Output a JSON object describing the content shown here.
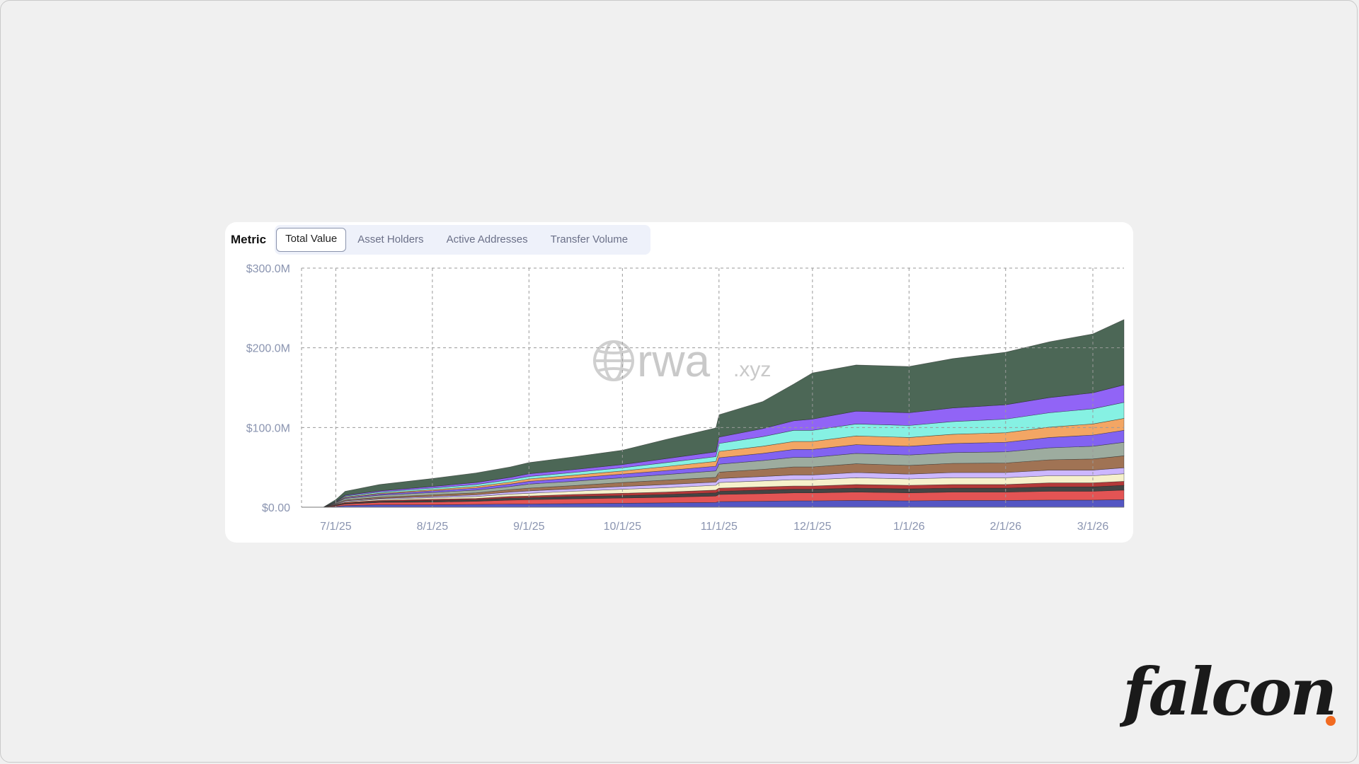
{
  "metric": {
    "label": "Metric",
    "tabs": [
      "Total Value",
      "Asset Holders",
      "Active Addresses",
      "Transfer Volume"
    ],
    "active_tab": "Total Value"
  },
  "watermark": {
    "main": "rwa",
    "suffix": ".xyz"
  },
  "logo": {
    "text": "falcon",
    "dot_color": "#f26b21"
  },
  "chart_data": {
    "type": "area",
    "stacked": true,
    "ylim": [
      0,
      300000000
    ],
    "y_ticks": [
      {
        "value": 0,
        "label": "$0.00"
      },
      {
        "value": 100000000,
        "label": "$100.0M"
      },
      {
        "value": 200000000,
        "label": "$200.0M"
      },
      {
        "value": 300000000,
        "label": "$300.0M"
      }
    ],
    "x_ticks": [
      "7/1/25",
      "8/1/25",
      "9/1/25",
      "10/1/25",
      "11/1/25",
      "12/1/25",
      "1/1/26",
      "2/1/26",
      "3/1/26"
    ],
    "x": [
      "2025-06-20",
      "2025-06-27",
      "2025-07-01",
      "2025-07-04",
      "2025-07-15",
      "2025-08-01",
      "2025-08-15",
      "2025-08-26",
      "2025-09-01",
      "2025-09-15",
      "2025-10-01",
      "2025-10-15",
      "2025-10-31",
      "2025-11-01",
      "2025-11-15",
      "2025-11-25",
      "2025-12-01",
      "2025-12-15",
      "2026-01-01",
      "2026-01-15",
      "2026-02-01",
      "2026-02-15",
      "2026-03-01",
      "2026-03-11"
    ],
    "grid": true,
    "legend": "none",
    "series": [
      {
        "color": "#4b4dc0",
        "values": [
          0,
          0,
          1,
          2,
          3,
          3,
          3.5,
          4,
          4,
          4.5,
          5,
          5.5,
          6,
          7,
          7.5,
          8,
          8,
          8.5,
          8,
          8.5,
          8.5,
          9,
          9,
          9.5
        ]
      },
      {
        "color": "#e14b4b",
        "values": [
          0,
          0,
          1,
          2,
          3,
          3.5,
          4,
          5,
          5.5,
          6,
          6.5,
          7,
          8,
          9,
          9.5,
          10,
          10,
          10.5,
          10,
          10.5,
          10.5,
          11,
          11,
          12
        ]
      },
      {
        "color": "#3a3a3a",
        "values": [
          0,
          0,
          0.5,
          1,
          1.5,
          2,
          2,
          2.5,
          2.5,
          3,
          3,
          3.5,
          4,
          4,
          4.5,
          4.5,
          4.5,
          5,
          5,
          5,
          5,
          5.5,
          5.5,
          6
        ]
      },
      {
        "color": "#b02e2e",
        "values": [
          0,
          0,
          0.5,
          1,
          1,
          1.5,
          1.5,
          2,
          2,
          2.5,
          3,
          3,
          3.5,
          4,
          4,
          4,
          4,
          4.5,
          4.5,
          4.5,
          4.5,
          5,
          5,
          5
        ]
      },
      {
        "color": "#f5f0c8",
        "values": [
          0,
          0,
          0.5,
          1,
          1.5,
          2,
          2.5,
          3,
          3.5,
          4,
          5,
          5.5,
          6,
          7,
          7.5,
          8,
          8,
          8.5,
          8,
          8.5,
          8.5,
          9,
          9,
          9.5
        ]
      },
      {
        "color": "#c9b3ff",
        "values": [
          0,
          0,
          0.5,
          1,
          1,
          1.5,
          2,
          2.5,
          3,
          3,
          3.5,
          4,
          4,
          5,
          5.5,
          6,
          6,
          6.5,
          6,
          6.5,
          6.5,
          7,
          7,
          7.5
        ]
      },
      {
        "color": "#9b6b4b",
        "values": [
          0,
          0,
          0.5,
          1,
          1.5,
          2,
          2.5,
          3,
          3.5,
          4,
          5,
          5.5,
          6,
          8,
          9,
          10,
          10,
          11,
          11,
          11.5,
          12,
          13,
          14,
          15
        ]
      },
      {
        "color": "#98a89a",
        "values": [
          0,
          0,
          1,
          2,
          2.5,
          3,
          3.5,
          4,
          5,
          5.5,
          6,
          7,
          8,
          10,
          11,
          12,
          12,
          13,
          13,
          13.5,
          14,
          15,
          16,
          17
        ]
      },
      {
        "color": "#7b5bf0",
        "values": [
          0,
          0,
          0.5,
          1,
          1.5,
          2,
          2.5,
          3,
          3.5,
          4,
          4.5,
          5,
          6,
          8,
          9,
          10,
          10,
          11,
          11,
          11.5,
          12,
          13,
          14,
          15
        ]
      },
      {
        "color": "#f2a15c",
        "values": [
          0,
          0,
          0.5,
          1,
          1,
          1.5,
          2,
          2.5,
          3,
          3.5,
          4,
          5,
          6,
          8,
          9,
          10,
          10,
          11,
          11,
          11.5,
          12,
          13,
          14,
          15
        ]
      },
      {
        "color": "#7ff0e2",
        "values": [
          0,
          0,
          0.5,
          1,
          1.5,
          2,
          2.5,
          3,
          3,
          3.5,
          4,
          5,
          6,
          10,
          12,
          14,
          14,
          15,
          15,
          16,
          17,
          18,
          19,
          20
        ]
      },
      {
        "color": "#8b5cf6",
        "values": [
          0,
          0,
          0.5,
          1,
          1.5,
          2,
          2.5,
          3,
          3.5,
          3.5,
          4,
          5,
          6,
          8,
          10,
          12,
          14,
          16,
          16,
          17,
          18,
          19,
          20,
          22
        ]
      },
      {
        "color": "#3d5a48",
        "values": [
          0,
          0,
          2,
          5,
          8,
          10,
          12,
          13,
          14,
          16,
          18,
          24,
          30,
          28,
          34,
          46,
          58,
          58,
          58,
          62,
          66,
          70,
          74,
          82
        ]
      }
    ]
  }
}
